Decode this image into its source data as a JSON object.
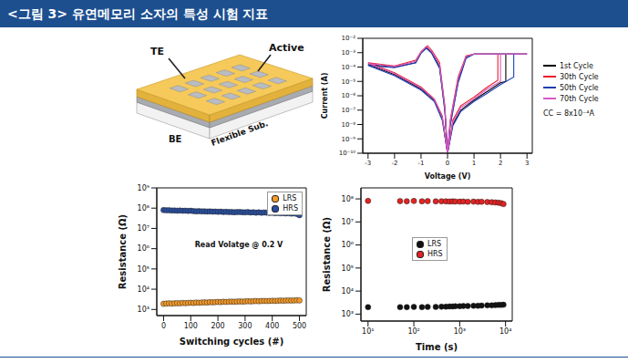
{
  "header": {
    "title": "<그림 3> 유연메모리 소자의 특성 시험 지표"
  },
  "schematic": {
    "labels": {
      "top_electrode": "TE",
      "active": "Active",
      "bottom_electrode": "BE",
      "substrate": "Flexible Sub."
    }
  },
  "chart_data": [
    {
      "type": "line",
      "x_label": "Voltage (V)",
      "y_label": "Current (A)",
      "annotation": "CC = 8x10⁻⁴A",
      "log": "y",
      "grid": false,
      "legend": "right",
      "xlim": [
        -3.2,
        3.2
      ],
      "xticks": [
        -3,
        -2,
        -1,
        0,
        1,
        2,
        3
      ],
      "ylim": [
        1e-10,
        0.01
      ],
      "yticks": [
        {
          "value": 1e-10,
          "label": "10⁻¹⁰"
        },
        {
          "value": 1e-09,
          "label": "10⁻⁹"
        },
        {
          "value": 1e-08,
          "label": "10⁻⁸"
        },
        {
          "value": 1e-07,
          "label": "10⁻⁷"
        },
        {
          "value": 1e-06,
          "label": "10⁻⁶"
        },
        {
          "value": 1e-05,
          "label": "10⁻⁵"
        },
        {
          "value": 0.0001,
          "label": "10⁻⁴"
        },
        {
          "value": 0.001,
          "label": "10⁻³"
        },
        {
          "value": 0.01,
          "label": "10⁻²"
        }
      ],
      "series": [
        {
          "name": "1st Cycle",
          "color": "#000000",
          "line_style": "solid",
          "points": [
            [
              0,
              1e-10
            ],
            [
              0.2,
              1e-08
            ],
            [
              0.5,
              1e-07
            ],
            [
              1,
              5e-07
            ],
            [
              1.5,
              2e-06
            ],
            [
              2,
              8e-06
            ],
            [
              2.2,
              1e-05
            ],
            [
              2.2,
              0.0008
            ],
            [
              3,
              0.0008
            ],
            [
              2,
              0.0008
            ],
            [
              1,
              0.0008
            ],
            [
              0.7,
              0.0005
            ],
            [
              0.4,
              1e-05
            ],
            [
              0.1,
              1e-08
            ],
            [
              0,
              1e-10
            ],
            [
              -0.1,
              1e-07
            ],
            [
              -0.3,
              0.0001
            ],
            [
              -0.6,
              0.001
            ],
            [
              -0.8,
              0.0025
            ],
            [
              -1,
              0.001
            ],
            [
              -1.2,
              0.0002
            ],
            [
              -2,
              0.0001
            ],
            [
              -3,
              0.00015
            ],
            [
              -2,
              3e-05
            ],
            [
              -1,
              3e-06
            ],
            [
              -0.5,
              5e-07
            ],
            [
              -0.2,
              3e-08
            ],
            [
              0,
              1e-10
            ]
          ]
        },
        {
          "name": "30th Cycle",
          "color": "#e8202a",
          "line_style": "solid",
          "points": [
            [
              0,
              1e-10
            ],
            [
              0.2,
              2e-08
            ],
            [
              0.5,
              2e-07
            ],
            [
              1,
              8e-07
            ],
            [
              1.5,
              4e-06
            ],
            [
              1.9,
              1.2e-05
            ],
            [
              1.9,
              0.0008
            ],
            [
              3,
              0.0008
            ],
            [
              2,
              0.0008
            ],
            [
              1,
              0.0008
            ],
            [
              0.7,
              0.0006
            ],
            [
              0.4,
              2e-05
            ],
            [
              0.1,
              2e-08
            ],
            [
              0,
              1e-10
            ],
            [
              -0.1,
              2e-07
            ],
            [
              -0.3,
              0.0002
            ],
            [
              -0.6,
              0.0015
            ],
            [
              -0.75,
              0.003
            ],
            [
              -1,
              0.0012
            ],
            [
              -1.2,
              0.0003
            ],
            [
              -2,
              0.00012
            ],
            [
              -3,
              0.0002
            ],
            [
              -2,
              4e-05
            ],
            [
              -1,
              4e-06
            ],
            [
              -0.5,
              6e-07
            ],
            [
              -0.2,
              4e-08
            ],
            [
              0,
              1e-10
            ]
          ]
        },
        {
          "name": "50th Cycle",
          "color": "#1f3fb5",
          "line_style": "solid",
          "points": [
            [
              0,
              1e-10
            ],
            [
              0.2,
              8e-09
            ],
            [
              0.5,
              8e-08
            ],
            [
              1,
              4e-07
            ],
            [
              1.5,
              1.5e-06
            ],
            [
              2,
              6e-06
            ],
            [
              2.5,
              2e-05
            ],
            [
              2.5,
              0.0008
            ],
            [
              3,
              0.0008
            ],
            [
              2,
              0.0008
            ],
            [
              1,
              0.0008
            ],
            [
              0.7,
              0.0004
            ],
            [
              0.4,
              8e-06
            ],
            [
              0.1,
              8e-09
            ],
            [
              0,
              1e-10
            ],
            [
              -0.1,
              8e-08
            ],
            [
              -0.3,
              8e-05
            ],
            [
              -0.6,
              0.0009
            ],
            [
              -0.8,
              0.002
            ],
            [
              -1,
              0.0009
            ],
            [
              -1.2,
              0.0002
            ],
            [
              -2,
              9e-05
            ],
            [
              -3,
              0.00013
            ],
            [
              -2,
              2.5e-05
            ],
            [
              -1,
              2.5e-06
            ],
            [
              -0.5,
              4e-07
            ],
            [
              -0.2,
              2e-08
            ],
            [
              0,
              1e-10
            ]
          ]
        },
        {
          "name": "70th Cycle",
          "color": "#d957c6",
          "line_style": "solid",
          "points": [
            [
              0,
              1e-10
            ],
            [
              0.2,
              1.5e-08
            ],
            [
              0.5,
              1.5e-07
            ],
            [
              1,
              6e-07
            ],
            [
              1.5,
              3e-06
            ],
            [
              2,
              1e-05
            ],
            [
              2,
              0.0008
            ],
            [
              3,
              0.0008
            ],
            [
              2,
              0.0008
            ],
            [
              1,
              0.0008
            ],
            [
              0.7,
              0.00055
            ],
            [
              0.4,
              1.5e-05
            ],
            [
              0.1,
              1.5e-08
            ],
            [
              0,
              1e-10
            ],
            [
              -0.1,
              1.5e-07
            ],
            [
              -0.3,
              0.00015
            ],
            [
              -0.6,
              0.0012
            ],
            [
              -0.8,
              0.0028
            ],
            [
              -1,
              0.0011
            ],
            [
              -1.2,
              0.00025
            ],
            [
              -2,
              0.00011
            ],
            [
              -3,
              0.00018
            ],
            [
              -2,
              3.5e-05
            ],
            [
              -1,
              3.5e-06
            ],
            [
              -0.5,
              5.5e-07
            ],
            [
              -0.2,
              3.5e-08
            ],
            [
              0,
              1e-10
            ]
          ]
        }
      ]
    },
    {
      "type": "scatter",
      "x_label": "Switching cycles (#)",
      "y_label": "Resistance (Ω)",
      "annotation": "Read Volatge @ 0.2 V",
      "log": "y",
      "grid": false,
      "legend": "upper right",
      "xlim": [
        -25,
        525
      ],
      "xticks": [
        0,
        100,
        200,
        300,
        400,
        500
      ],
      "ylim": [
        500,
        1000000000.0
      ],
      "yticks": [
        {
          "value": 1000.0,
          "label": "10³"
        },
        {
          "value": 10000.0,
          "label": "10⁴"
        },
        {
          "value": 100000.0,
          "label": "10⁵"
        },
        {
          "value": 1000000.0,
          "label": "10⁶"
        },
        {
          "value": 10000000.0,
          "label": "10⁷"
        },
        {
          "value": 100000000.0,
          "label": "10⁸"
        },
        {
          "value": 1000000000.0,
          "label": "10⁹"
        }
      ],
      "x": [
        0,
        10,
        20,
        30,
        40,
        50,
        60,
        70,
        80,
        90,
        100,
        110,
        120,
        130,
        140,
        150,
        160,
        170,
        180,
        190,
        200,
        210,
        220,
        230,
        240,
        250,
        260,
        270,
        280,
        290,
        300,
        310,
        320,
        330,
        340,
        350,
        360,
        370,
        380,
        390,
        400,
        410,
        420,
        430,
        440,
        450,
        460,
        470,
        480,
        490,
        500
      ],
      "series": [
        {
          "name": "LRS",
          "color": "#f39a2b",
          "marker": "circle",
          "values": [
            1900,
            1950,
            2000,
            1950,
            2000,
            2050,
            2000,
            2100,
            2050,
            2100,
            2150,
            2100,
            2200,
            2150,
            2200,
            2250,
            2200,
            2300,
            2250,
            2300,
            2350,
            2300,
            2400,
            2350,
            2400,
            2450,
            2400,
            2450,
            2500,
            2450,
            2500,
            2550,
            2500,
            2550,
            2600,
            2550,
            2600,
            2650,
            2600,
            2650,
            2700,
            2650,
            2700,
            2750,
            2700,
            2750,
            2800,
            2750,
            2800,
            2850,
            2800
          ]
        },
        {
          "name": "HRS",
          "color": "#2a4fa0",
          "marker": "circle",
          "values": [
            80000000.0,
            78000000.0,
            79000000.0,
            76000000.0,
            77000000.0,
            75000000.0,
            76000000.0,
            74000000.0,
            75000000.0,
            73000000.0,
            74000000.0,
            72000000.0,
            70000000.0,
            71000000.0,
            69000000.0,
            70000000.0,
            68000000.0,
            69000000.0,
            67000000.0,
            68000000.0,
            66000000.0,
            67000000.0,
            65000000.0,
            66000000.0,
            64000000.0,
            65000000.0,
            63000000.0,
            64000000.0,
            65000000.0,
            63000000.0,
            62000000.0,
            64000000.0,
            61000000.0,
            63000000.0,
            60000000.0,
            62000000.0,
            59000000.0,
            61000000.0,
            60000000.0,
            58000000.0,
            59000000.0,
            57000000.0,
            58000000.0,
            56000000.0,
            57000000.0,
            55000000.0,
            56000000.0,
            54000000.0,
            55000000.0,
            52000000.0,
            45000000.0
          ]
        }
      ]
    },
    {
      "type": "scatter",
      "x_label": "Time (s)",
      "y_label": "Resistance (Ω)",
      "log": true,
      "grid": false,
      "legend": "center left",
      "xlim": [
        7,
        14000
      ],
      "xticks": [
        {
          "value": 10,
          "label": "10¹"
        },
        {
          "value": 100,
          "label": "10²"
        },
        {
          "value": 1000,
          "label": "10³"
        },
        {
          "value": 10000,
          "label": "10⁴"
        }
      ],
      "ylim": [
        500,
        300000000.0
      ],
      "yticks": [
        {
          "value": 1000.0,
          "label": "10³"
        },
        {
          "value": 10000.0,
          "label": "10⁴"
        },
        {
          "value": 100000.0,
          "label": "10⁵"
        },
        {
          "value": 1000000.0,
          "label": "10⁶"
        },
        {
          "value": 10000000.0,
          "label": "10⁷"
        },
        {
          "value": 100000000.0,
          "label": "10⁸"
        }
      ],
      "x": [
        10,
        50,
        70,
        100,
        150,
        200,
        300,
        400,
        500,
        600,
        700,
        800,
        1000,
        1200,
        1500,
        2000,
        2500,
        3000,
        4000,
        5000,
        6000,
        7000,
        8000,
        9000
      ],
      "series": [
        {
          "name": "LRS",
          "color": "#111111",
          "marker": "circle",
          "values": [
            2000,
            2000,
            2000,
            2050,
            2000,
            2050,
            2050,
            2100,
            2100,
            2150,
            2150,
            2200,
            2200,
            2250,
            2250,
            2300,
            2300,
            2350,
            2400,
            2400,
            2450,
            2500,
            2500,
            2550
          ]
        },
        {
          "name": "HRS",
          "color": "#e32222",
          "marker": "circle",
          "values": [
            82000000.0,
            80000000.0,
            79000000.0,
            81000000.0,
            79000000.0,
            80000000.0,
            78000000.0,
            79000000.0,
            78000000.0,
            77000000.0,
            78000000.0,
            77000000.0,
            76000000.0,
            77000000.0,
            75000000.0,
            76000000.0,
            74000000.0,
            75000000.0,
            73000000.0,
            72000000.0,
            70000000.0,
            68000000.0,
            65000000.0,
            60000000.0
          ]
        }
      ]
    }
  ]
}
